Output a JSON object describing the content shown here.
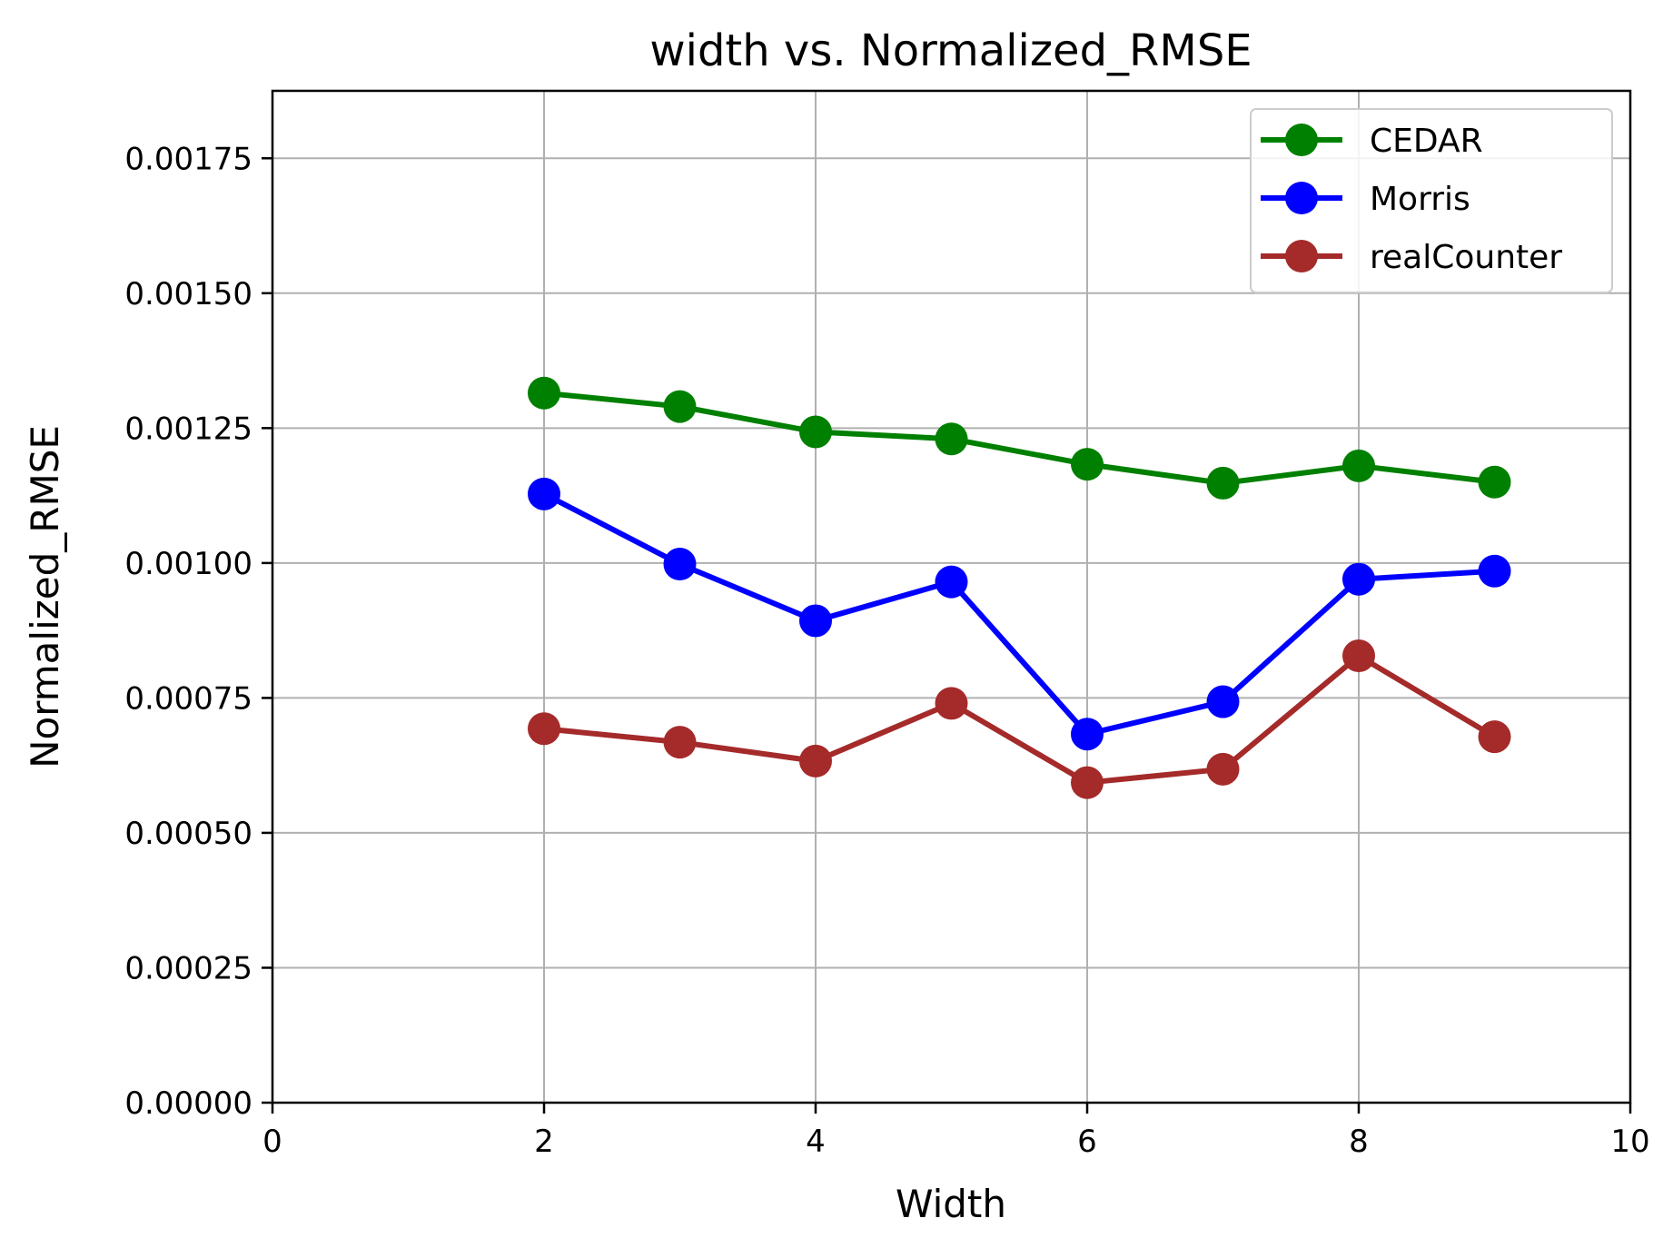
{
  "chart_data": {
    "type": "line",
    "title": "width vs. Normalized_RMSE",
    "xlabel": "Width",
    "ylabel": "Normalized_RMSE",
    "xlim": [
      0,
      10
    ],
    "ylim": [
      0,
      0.001875
    ],
    "x_ticks": [
      0,
      2,
      4,
      6,
      8,
      10
    ],
    "x_tick_labels": [
      "0",
      "2",
      "4",
      "6",
      "8",
      "10"
    ],
    "y_ticks": [
      0,
      0.00025,
      0.0005,
      0.00075,
      0.001,
      0.00125,
      0.0015,
      0.00175
    ],
    "y_tick_labels": [
      "0.00000",
      "0.00025",
      "0.00050",
      "0.00075",
      "0.00100",
      "0.00125",
      "0.00150",
      "0.00175"
    ],
    "grid": true,
    "legend_position": "top-right",
    "x": [
      2,
      3,
      4,
      5,
      6,
      7,
      8,
      9
    ],
    "series": [
      {
        "name": "CEDAR",
        "color": "#008000",
        "values": [
          0.001315,
          0.00129,
          0.001243,
          0.00123,
          0.001183,
          0.001148,
          0.00118,
          0.00115
        ]
      },
      {
        "name": "Morris",
        "color": "#0000ff",
        "values": [
          0.001128,
          0.000998,
          0.000893,
          0.000965,
          0.000683,
          0.000743,
          0.00097,
          0.000985
        ]
      },
      {
        "name": "realCounter",
        "color": "#a52a2a",
        "values": [
          0.000693,
          0.000668,
          0.000633,
          0.00074,
          0.000593,
          0.000618,
          0.000828,
          0.000678
        ]
      }
    ]
  }
}
